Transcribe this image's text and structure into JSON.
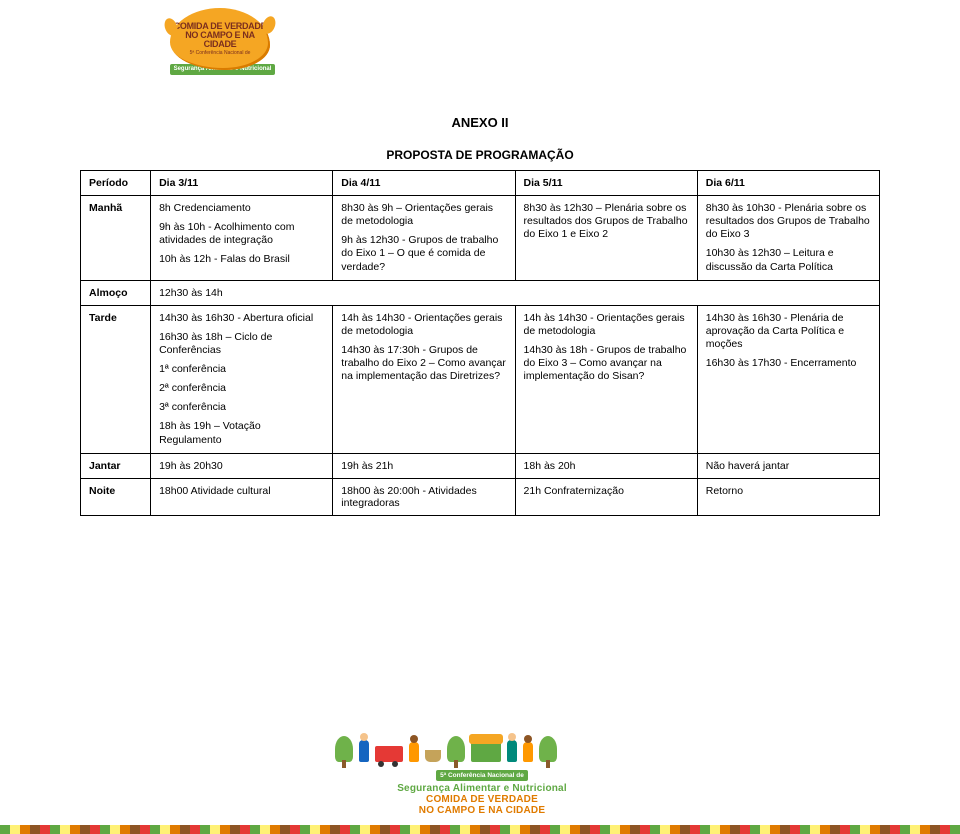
{
  "logo": {
    "main_text": "COMIDA DE VERDADE NO CAMPO E NA CIDADE",
    "subtitle": "5ª Conferência Nacional de",
    "band": "Segurança Alimentar e Nutricional",
    "burst_color": "#f5a623",
    "band_color": "#5fa843",
    "text_color": "#7b2e1e"
  },
  "titles": {
    "doc": "ANEXO II",
    "section": "PROPOSTA DE PROGRAMAÇÃO"
  },
  "table": {
    "headers": [
      "Período",
      "Dia 3/11",
      "Dia 4/11",
      "Dia 5/11",
      "Dia 6/11"
    ],
    "rows": {
      "manha": {
        "label": "Manhã",
        "d1": [
          "8h  Credenciamento",
          "9h às 10h - Acolhimento com atividades de integração",
          "10h às 12h - Falas do Brasil"
        ],
        "d2": [
          "8h30 às 9h – Orientações gerais de metodologia",
          "9h às 12h30 - Grupos de trabalho do Eixo 1 – O que é comida de verdade?"
        ],
        "d3": [
          "8h30 às 12h30 – Plenária sobre os resultados dos Grupos de Trabalho do Eixo 1 e Eixo 2"
        ],
        "d4": [
          "8h30 às 10h30 - Plenária sobre os resultados dos Grupos de Trabalho do Eixo 3",
          "10h30 às 12h30 – Leitura e discussão da Carta Política"
        ]
      },
      "almoco": {
        "label": "Almoço",
        "text": "12h30 às 14h"
      },
      "tarde": {
        "label": "Tarde",
        "d1": [
          "14h30 às 16h30 - Abertura oficial",
          "16h30 às 18h – Ciclo de Conferências",
          "1ª conferência",
          "2ª conferência",
          "3ª conferência",
          "18h às 19h – Votação Regulamento"
        ],
        "d2": [
          "14h às 14h30 -  Orientações gerais de metodologia",
          "14h30 às 17:30h - Grupos de trabalho do Eixo 2 – Como avançar na implementação das Diretrizes?"
        ],
        "d3": [
          "14h às 14h30 -  Orientações gerais de metodologia",
          "14h30 às 18h - Grupos de trabalho do Eixo 3 – Como avançar na implementação do Sisan?"
        ],
        "d4": [
          "14h30 às 16h30 - Plenária de aprovação da Carta Política e moções",
          "16h30 às 17h30 - Encerramento"
        ]
      },
      "jantar": {
        "label": "Jantar",
        "d1": "19h às 20h30",
        "d2": "19h às 21h",
        "d3": "18h às 20h",
        "d4": "Não haverá jantar"
      },
      "noite": {
        "label": "Noite",
        "d1": "18h00 Atividade cultural",
        "d2": "18h00 às 20:00h -  Atividades integradoras",
        "d3": "21h Confraternização",
        "d4": "Retorno"
      }
    },
    "border_color": "#000000",
    "font_size": 10.5
  },
  "footer": {
    "conf_line": "5ª Conferência Nacional de",
    "seg_line": "Segurança Alimentar e Nutricional",
    "com_line1": "COMIDA DE VERDADE",
    "com_line2": "NO CAMPO E NA CIDADE",
    "green": "#5fa843",
    "orange": "#e07b00"
  }
}
